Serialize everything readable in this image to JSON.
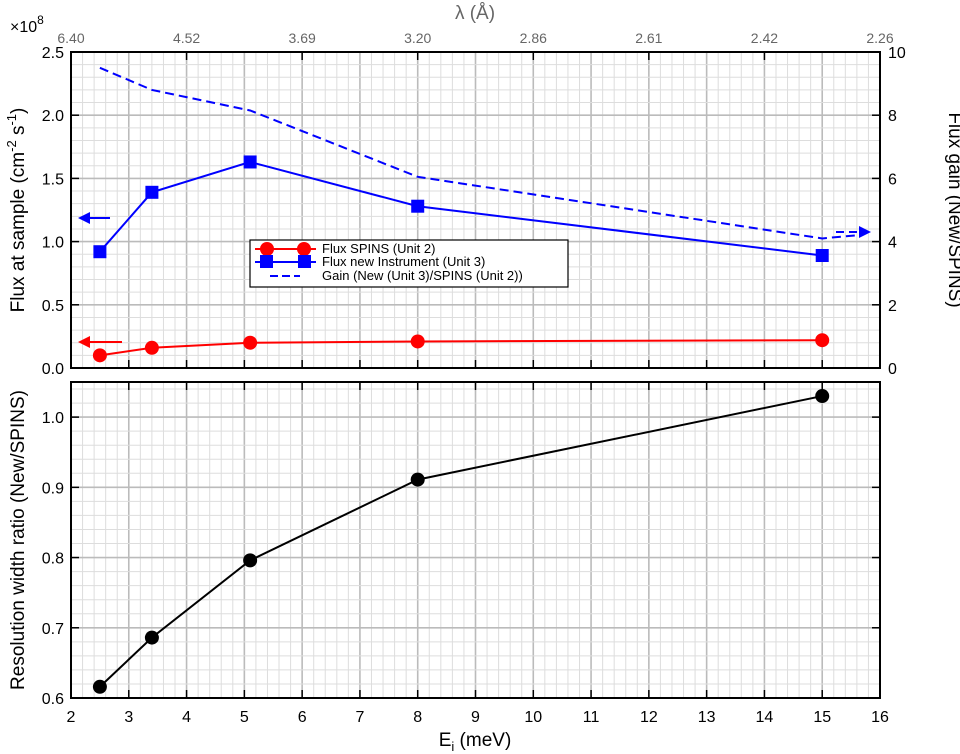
{
  "chart_data": [
    {
      "type": "line",
      "panel": "top",
      "x_label_top": "λ (Å)",
      "x_top_ticks": [
        {
          "e": 2,
          "label": "6.40"
        },
        {
          "e": 4,
          "label": "4.52"
        },
        {
          "e": 6,
          "label": "3.69"
        },
        {
          "e": 8,
          "label": "3.20"
        },
        {
          "e": 10,
          "label": "2.86"
        },
        {
          "e": 12,
          "label": "2.61"
        },
        {
          "e": 14,
          "label": "2.42"
        },
        {
          "e": 16,
          "label": "2.26"
        }
      ],
      "y_label": "Flux at sample (cm-2 s-1)",
      "y_label_parts": {
        "base": "Flux at sample (cm",
        "exp1": "-2",
        "mid": " s",
        "exp2": "-1",
        "end": ")"
      },
      "y_multiplier": {
        "base": "×10",
        "exp": "8"
      },
      "ylim": [
        0,
        2.5
      ],
      "y_ticks": [
        "0.0",
        "0.5",
        "1.0",
        "1.5",
        "2.0",
        "2.5"
      ],
      "y2_label": "Flux gain (New/SPINS)",
      "y2lim": [
        0,
        10
      ],
      "y2_ticks": [
        "0",
        "2",
        "4",
        "6",
        "8",
        "10"
      ],
      "xlim": [
        2,
        16
      ],
      "grid": true,
      "legend_position": "center-left",
      "series": [
        {
          "name": "Flux SPINS (Unit 2)",
          "axis": "left",
          "marker": "circle",
          "color": "#ff0000",
          "x": [
            2.5,
            3.4,
            5.1,
            8.0,
            15.0
          ],
          "y": [
            0.1,
            0.16,
            0.2,
            0.21,
            0.22
          ]
        },
        {
          "name": "Flux new Instrument (Unit 3)",
          "axis": "left",
          "marker": "square",
          "color": "#0000ff",
          "x": [
            2.5,
            3.4,
            5.1,
            8.0,
            15.0
          ],
          "y": [
            0.92,
            1.39,
            1.63,
            1.28,
            0.89
          ]
        },
        {
          "name": "Gain (New (Unit 3)/SPINS (Unit 2))",
          "axis": "right",
          "marker": "none",
          "style": "dashed",
          "color": "#0000ff",
          "x": [
            2.5,
            3.4,
            5.1,
            8.0,
            15.0
          ],
          "y": [
            9.5,
            8.8,
            8.15,
            6.05,
            4.1
          ]
        }
      ]
    },
    {
      "type": "line",
      "panel": "bottom",
      "x_label": "Ei (meV)",
      "x_label_parts": {
        "base": "E",
        "sub": "i",
        "rest": " (meV)"
      },
      "xlim": [
        2,
        16
      ],
      "x_ticks": [
        "2",
        "3",
        "4",
        "5",
        "6",
        "7",
        "8",
        "9",
        "10",
        "11",
        "12",
        "13",
        "14",
        "15",
        "16"
      ],
      "y_label": "Resolution width ratio (New/SPINS)",
      "ylim": [
        0.6,
        1.05
      ],
      "y_ticks": [
        "0.6",
        "0.7",
        "0.8",
        "0.9",
        "1.0"
      ],
      "grid": true,
      "series": [
        {
          "marker": "circle",
          "color": "#000000",
          "x": [
            2.5,
            3.4,
            5.1,
            8.0,
            15.0
          ],
          "y": [
            0.616,
            0.686,
            0.796,
            0.911,
            1.03
          ]
        }
      ]
    }
  ]
}
